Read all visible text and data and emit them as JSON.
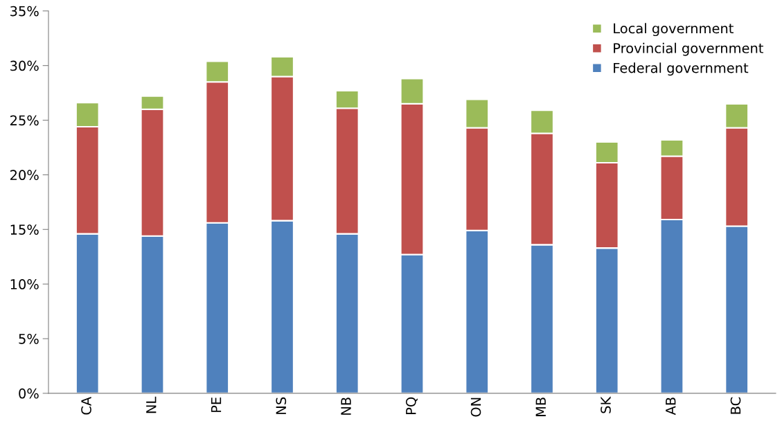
{
  "chart_data": {
    "type": "bar",
    "stacked": true,
    "categories": [
      "CA",
      "NL",
      "PE",
      "NS",
      "NB",
      "PQ",
      "ON",
      "MB",
      "SK",
      "AB",
      "BC"
    ],
    "series": [
      {
        "name": "Federal government",
        "color": "#4f81bd",
        "values": [
          14.6,
          14.4,
          15.6,
          15.8,
          14.6,
          12.7,
          14.9,
          13.6,
          13.3,
          15.9,
          15.3
        ]
      },
      {
        "name": "Provincial government",
        "color": "#c0504d",
        "values": [
          9.8,
          11.6,
          12.9,
          13.2,
          11.5,
          13.8,
          9.4,
          10.2,
          7.8,
          5.8,
          9.0
        ]
      },
      {
        "name": "Local government",
        "color": "#9bbb59",
        "values": [
          2.2,
          1.2,
          1.9,
          1.8,
          1.6,
          2.3,
          2.6,
          2.1,
          1.9,
          1.5,
          2.2
        ]
      }
    ],
    "ylim": [
      0,
      35
    ],
    "yticks": [
      {
        "value": 0,
        "label": "0%"
      },
      {
        "value": 5,
        "label": "5%"
      },
      {
        "value": 10,
        "label": "10%"
      },
      {
        "value": 15,
        "label": "15%"
      },
      {
        "value": 20,
        "label": "20%"
      },
      {
        "value": 25,
        "label": "25%"
      },
      {
        "value": 30,
        "label": "30%"
      },
      {
        "value": 35,
        "label": "35%"
      }
    ],
    "grid": false,
    "legend": "top right"
  }
}
